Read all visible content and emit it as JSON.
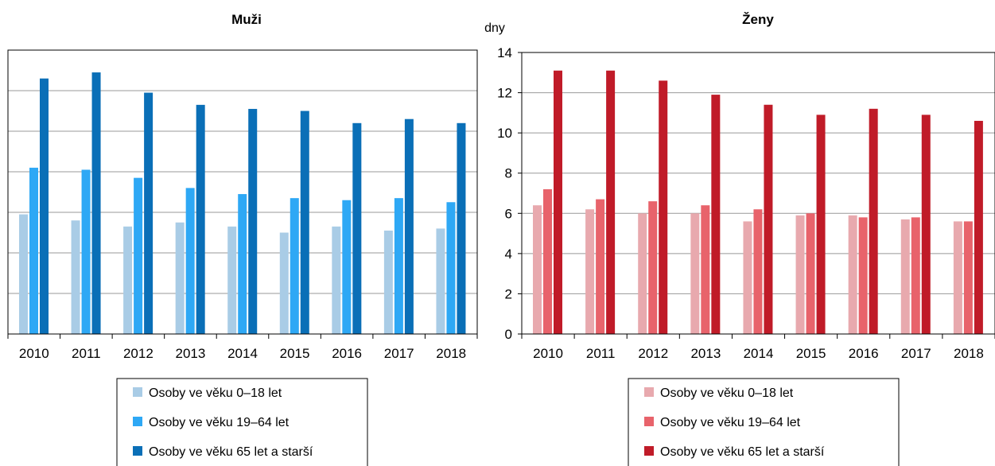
{
  "chart_data": [
    {
      "type": "bar",
      "title": "Muži",
      "ylabel": "",
      "xlabel": "",
      "ylim": [
        0,
        14
      ],
      "grid": true,
      "categories": [
        "2010",
        "2011",
        "2012",
        "2013",
        "2014",
        "2015",
        "2016",
        "2017",
        "2018"
      ],
      "series": [
        {
          "name": "Osoby ve věku 0–18 let",
          "color": "#a9cce6",
          "values": [
            5.9,
            5.6,
            5.3,
            5.5,
            5.3,
            5.0,
            5.3,
            5.1,
            5.2
          ]
        },
        {
          "name": "Osoby ve věku 19–64 let",
          "color": "#2ea8f5",
          "values": [
            8.2,
            8.1,
            7.7,
            7.2,
            6.9,
            6.7,
            6.6,
            6.7,
            6.5
          ]
        },
        {
          "name": "Osoby ve věku 65 let a starší",
          "color": "#0a6fb7",
          "values": [
            12.6,
            12.9,
            11.9,
            11.3,
            11.1,
            11.0,
            10.4,
            10.6,
            10.4
          ]
        }
      ],
      "legend_position": "bottom"
    },
    {
      "type": "bar",
      "title": "Ženy",
      "ylabel": "dny",
      "xlabel": "",
      "ylim": [
        0,
        14
      ],
      "yticks": [
        "0",
        "2",
        "4",
        "6",
        "8",
        "10",
        "12",
        "14"
      ],
      "grid": true,
      "categories": [
        "2010",
        "2011",
        "2012",
        "2013",
        "2014",
        "2015",
        "2016",
        "2017",
        "2018"
      ],
      "series": [
        {
          "name": "Osoby ve věku 0–18 let",
          "color": "#e8a9ae",
          "values": [
            6.4,
            6.2,
            6.0,
            6.0,
            5.6,
            5.9,
            5.9,
            5.7,
            5.6
          ]
        },
        {
          "name": "Osoby ve věku 19–64 let",
          "color": "#e8636b",
          "values": [
            7.2,
            6.7,
            6.6,
            6.4,
            6.2,
            6.0,
            5.8,
            5.8,
            5.6
          ]
        },
        {
          "name": "Osoby ve věku 65 let a starší",
          "color": "#c01b28",
          "values": [
            13.1,
            13.1,
            12.6,
            11.9,
            11.4,
            10.9,
            11.2,
            10.9,
            10.6
          ]
        }
      ],
      "legend_position": "bottom"
    }
  ]
}
